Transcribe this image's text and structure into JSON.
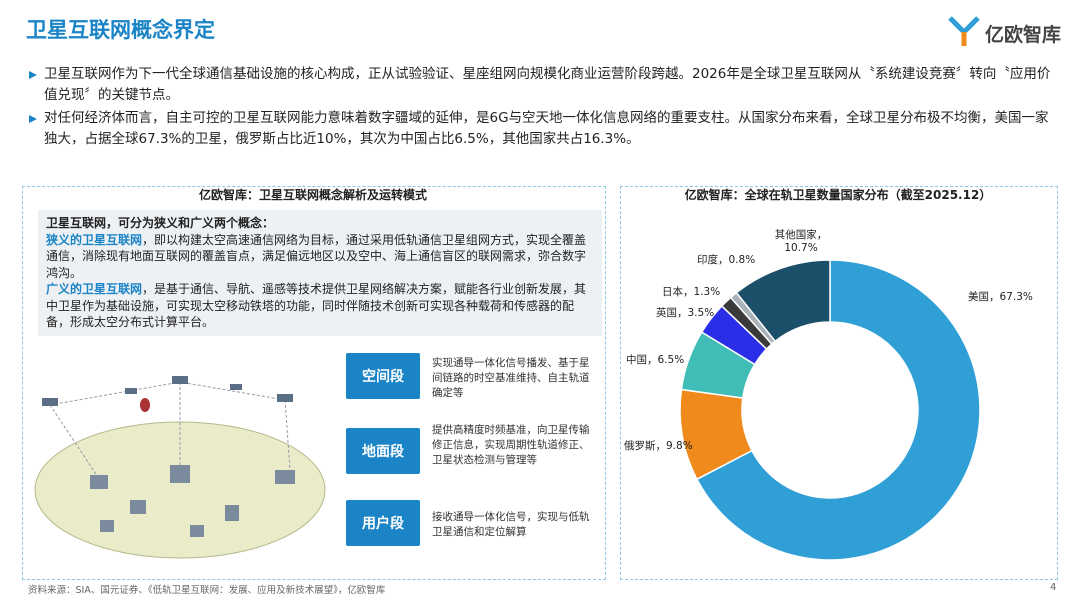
{
  "header": {
    "title": "卫星互联网概念界定",
    "logo": "亿欧智库"
  },
  "bullets": [
    "卫星互联网作为下一代全球通信基础设施的核心构成，正从试验验证、星座组网向规模化商业运营阶段跨越。2026年是全球卫星互联网从〝系统建设竞赛〞转向〝应用价值兑现〞的关键节点。",
    "对任何经济体而言，自主可控的卫星互联网能力意味着数字疆域的延伸，是6G与空天地一体化信息网络的重要支柱。从国家分布来看，全球卫星分布极不均衡，美国一家独大，占据全球67.3%的卫星，俄罗斯占比近10%，其次为中国占比6.5%，其他国家共占16.3%。"
  ],
  "left_panel": {
    "title": "亿欧智库：卫星互联网概念解析及运转模式",
    "intro": "卫星互联网，可分为狭义和广义两个概念：",
    "definitions": [
      {
        "term": "狭义的卫星互联网",
        "text": "，即以构建太空高速通信网络为目标，通过采用低轨通信卫星组网方式，实现全覆盖通信，消除现有地面互联网的覆盖盲点，满足偏远地区以及空中、海上通信盲区的联网需求，弥合数字鸿沟。"
      },
      {
        "term": "广义的卫星互联网",
        "text": "，是基于通信、导航、遥感等技术提供卫星网络解决方案，赋能各行业创新发展，其中卫星作为基础设施，可实现太空移动铁塔的功能，同时伴随技术创新可实现各种载荷和传感器的配备，形成太空分布式计算平台。"
      }
    ],
    "segments": [
      {
        "name": "空间段",
        "text": "实现通导一体化信号播发、基于星间链路的时空基准维持、自主轨道确定等"
      },
      {
        "name": "地面段",
        "text": "提供高精度时频基准，向卫星传输修正信息，实现周期性轨道修正、卫星状态检测与管理等"
      },
      {
        "name": "用户段",
        "text": "接收通导一体化信号，实现与低轨卫星通信和定位解算"
      }
    ]
  },
  "chart_data": {
    "type": "donut",
    "title": "亿欧智库：全球在轨卫星数量国家分布（截至2025.12）",
    "categories": [
      "美国",
      "俄罗斯",
      "中国",
      "英国",
      "日本",
      "印度",
      "其他国家"
    ],
    "values": [
      67.3,
      9.8,
      6.5,
      3.5,
      1.3,
      0.8,
      10.7
    ],
    "value_labels": [
      "美国，67.3%",
      "俄罗斯，9.8%",
      "中国，6.5%",
      "英国，3.5%",
      "日本，1.3%",
      "印度，0.8%",
      "其他国家，10.7%"
    ],
    "colors": [
      "#2f9fd6",
      "#f08a1c",
      "#3fbdb6",
      "#2a2ee6",
      "#3a3a3a",
      "#a9b2b8",
      "#1c4f6a"
    ]
  },
  "footer": {
    "source": "资料来源：SIA、国元证券、《低轨卫星互联网：发展、应用及新技术展望》，亿欧智库",
    "page": "4"
  }
}
